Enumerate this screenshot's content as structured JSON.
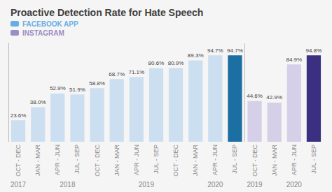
{
  "chart_data": {
    "type": "bar",
    "title": "Proactive Detection Rate for Hate Speech",
    "categories": [
      "OCT - DEC",
      "JAN - MAR",
      "APR - JUN",
      "JUL - SEP",
      "OCT - DEC",
      "JAN - MAR",
      "APR - JUN",
      "JUL - SEP",
      "OCT - DEC",
      "JAN - MAR",
      "APR - JUN",
      "JUL - SEP",
      "OCT - DEC",
      "JAN - MAR",
      "APR - JUN",
      "JUL - SEP"
    ],
    "category_groups": [
      "2017",
      "2018",
      "2018",
      "2018",
      "2018",
      "2019",
      "2019",
      "2019",
      "2019",
      "2020",
      "2020",
      "2020",
      "2019",
      "2020",
      "2020",
      "2020"
    ],
    "series": [
      {
        "name": "FACEBOOK APP",
        "color": "#6aade4",
        "values": [
          23.6,
          38.0,
          52.9,
          51.9,
          58.8,
          68.7,
          71.1,
          80.6,
          80.9,
          89.3,
          94.7,
          94.7,
          null,
          null,
          null,
          null
        ],
        "value_labels": [
          "23.6%",
          "38.0%",
          "52.9%",
          "51.9%",
          "58.8%",
          "68.7%",
          "71.1%",
          "80.6%",
          "80.9%",
          "89.3%",
          "94.7%",
          "94.7%",
          null,
          null,
          null,
          null
        ],
        "colors": [
          "#ccdff0",
          "#ccdff0",
          "#ccdff0",
          "#ccdff0",
          "#ccdff0",
          "#ccdff0",
          "#ccdff0",
          "#ccdff0",
          "#ccdff0",
          "#ccdff0",
          "#ccdff0",
          "#1c6fa3",
          null,
          null,
          null,
          null
        ]
      },
      {
        "name": "INSTAGRAM",
        "color": "#9b8ec4",
        "values": [
          null,
          null,
          null,
          null,
          null,
          null,
          null,
          null,
          null,
          null,
          null,
          null,
          44.6,
          42.9,
          84.9,
          94.8
        ],
        "value_labels": [
          null,
          null,
          null,
          null,
          null,
          null,
          null,
          null,
          null,
          null,
          null,
          null,
          "44.6%",
          "42.9%",
          "84.9%",
          "94.8%"
        ],
        "colors": [
          null,
          null,
          null,
          null,
          null,
          null,
          null,
          null,
          null,
          null,
          null,
          null,
          "#d5d0e8",
          "#d5d0e8",
          "#d5d0e8",
          "#3b2f82"
        ]
      }
    ],
    "ylim": [
      0,
      108
    ],
    "data_labels": true,
    "tick_labels": "x",
    "grid": false,
    "legend": "upper left"
  }
}
